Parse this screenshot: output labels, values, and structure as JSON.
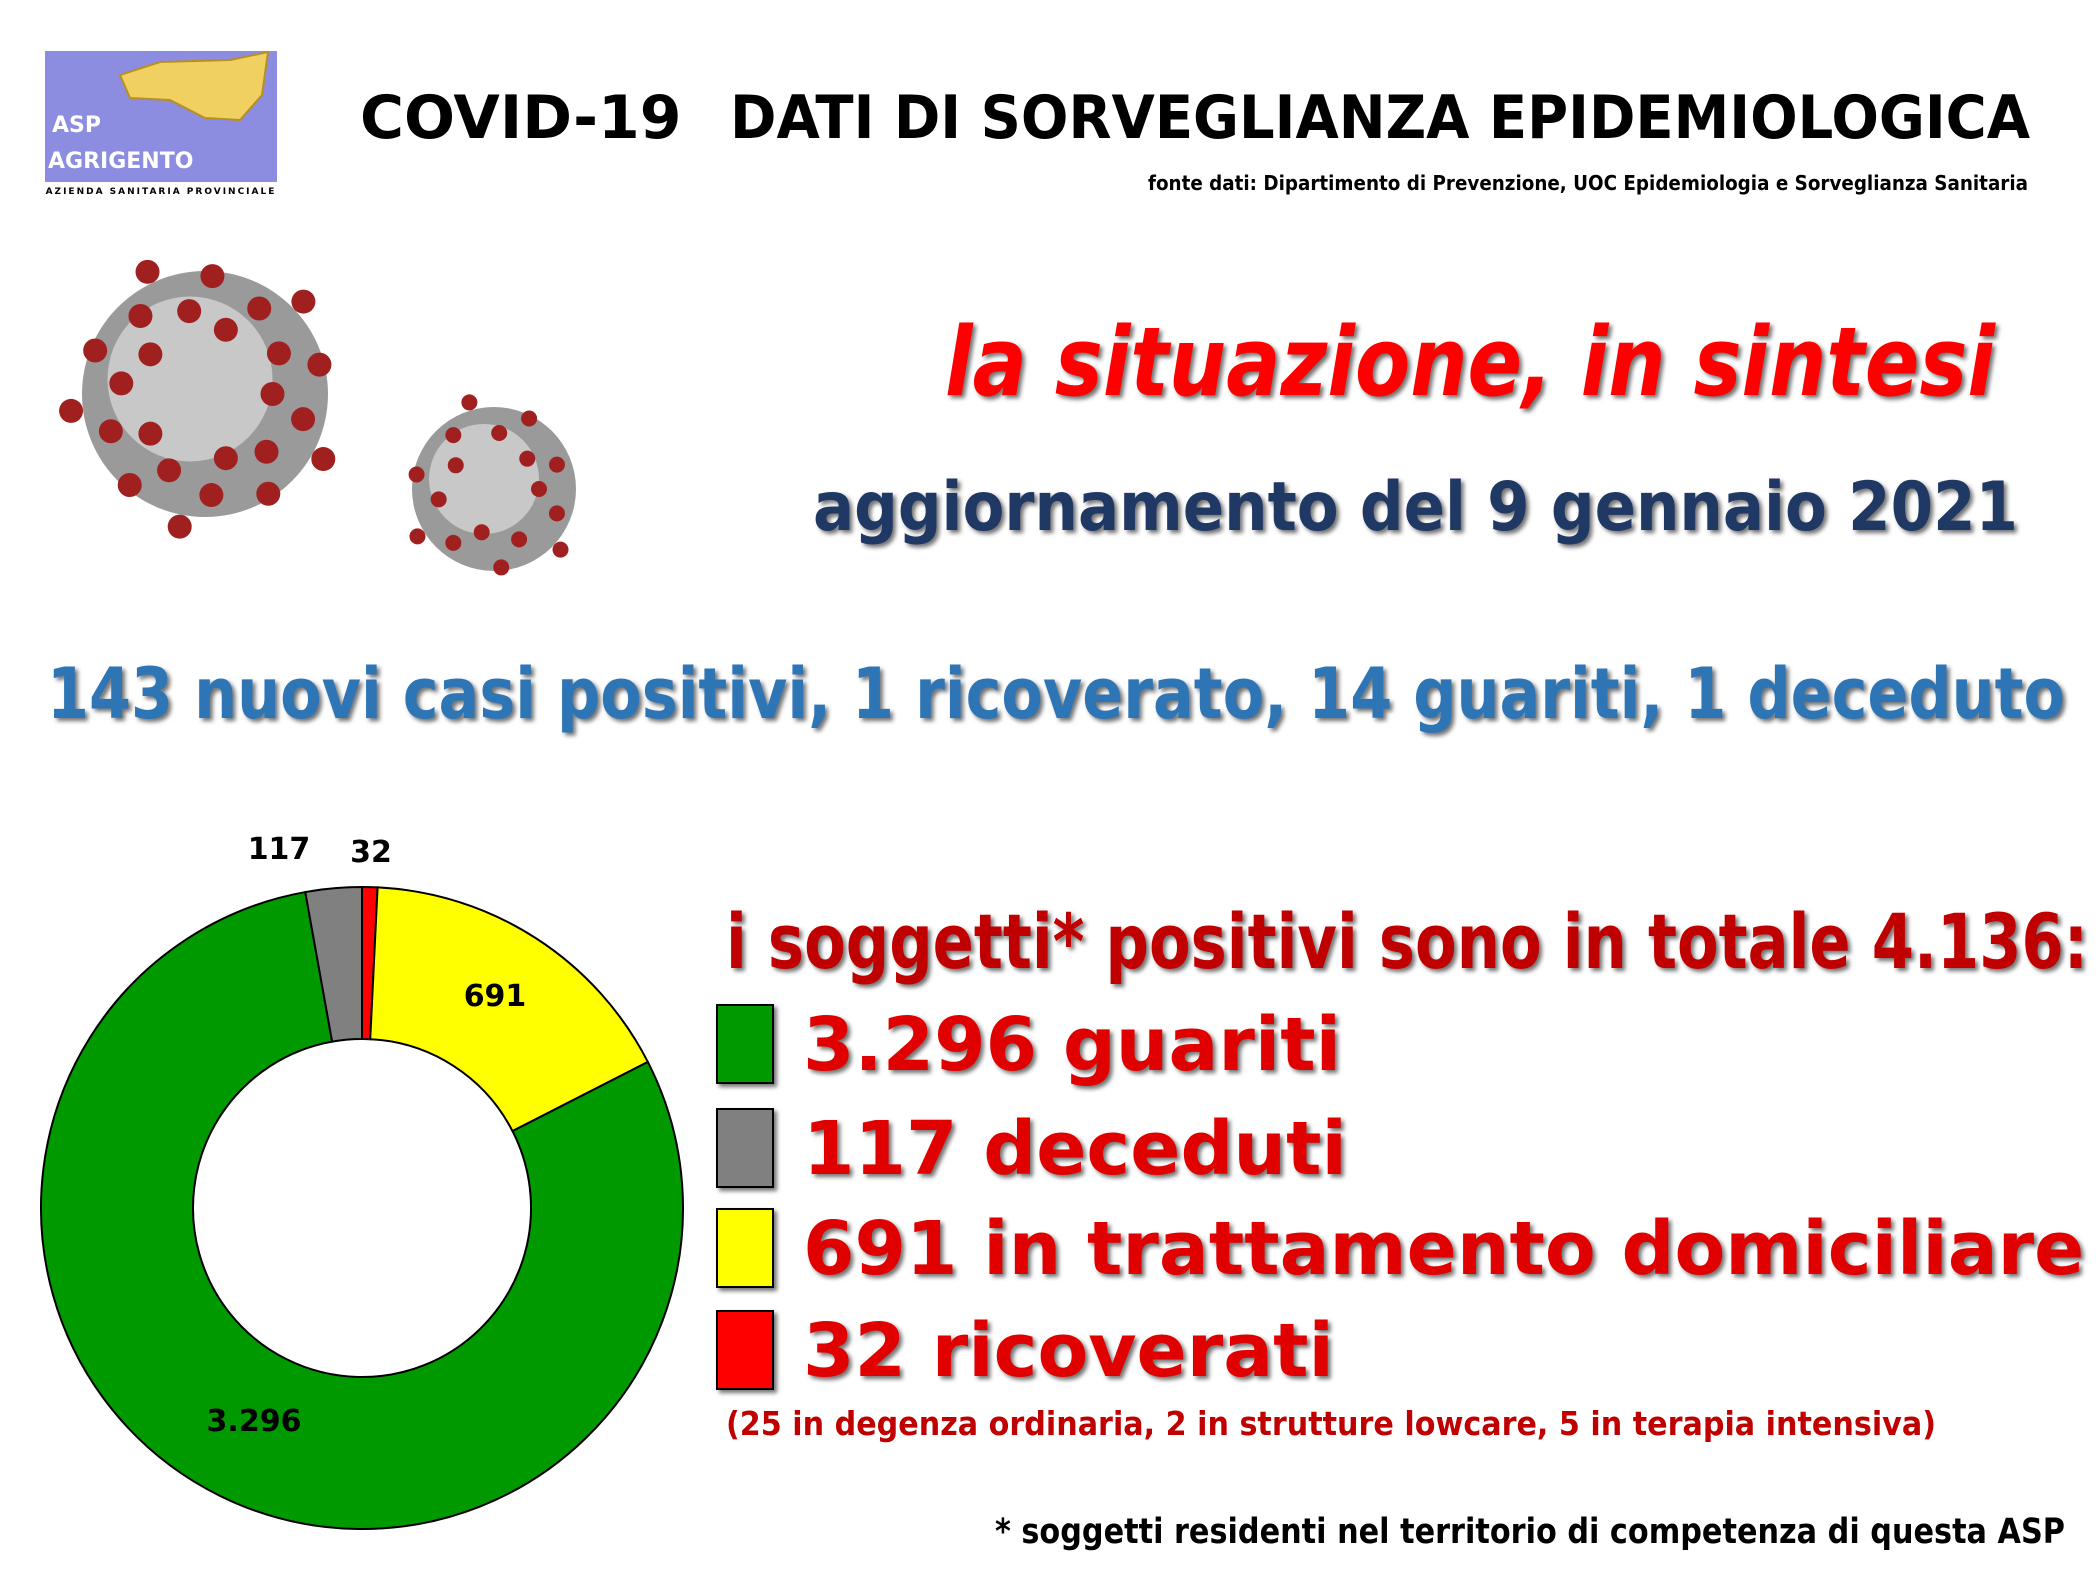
{
  "header": {
    "logo": [
      "ASP",
      "AGRIGENTO",
      "AZIENDA SANITARIA PROVINCIALE"
    ],
    "title_left": "COVID-19",
    "title_right": "DATI DI SORVEGLIANZA EPIDEMIOLOGICA",
    "source": "fonte dati: Dipartimento di Prevenzione, UOC Epidemiologia e Sorveglianza Sanitaria"
  },
  "subtitle": "la situazione, in sintesi",
  "update": "aggiornamento del 9 gennaio 2021",
  "headline": "143 nuovi casi positivi, 1 ricoverato, 14 guariti, 1 deceduto",
  "chart_data": {
    "type": "donut",
    "values": [
      32,
      691,
      3296,
      117
    ],
    "value_labels": [
      "32",
      "691",
      "3.296",
      "117"
    ],
    "colors": [
      "#ff0000",
      "#ffff00",
      "#009900",
      "#808080"
    ],
    "total_text": "i soggetti* positivi sono in totale 4.136:",
    "legend": [
      {
        "label": "3.296 guariti",
        "color": "#009900"
      },
      {
        "label": "117 deceduti",
        "color": "#808080"
      },
      {
        "label": "691 in trattamento domiciliare",
        "color": "#ffff00"
      },
      {
        "label": "32 ricoverati",
        "color": "#ff0000"
      }
    ],
    "note": "(25 in degenza ordinaria, 2 in strutture lowcare, 5 in terapia intensiva)",
    "footnote": "* soggetti residenti nel territorio di competenza di questa ASP"
  }
}
